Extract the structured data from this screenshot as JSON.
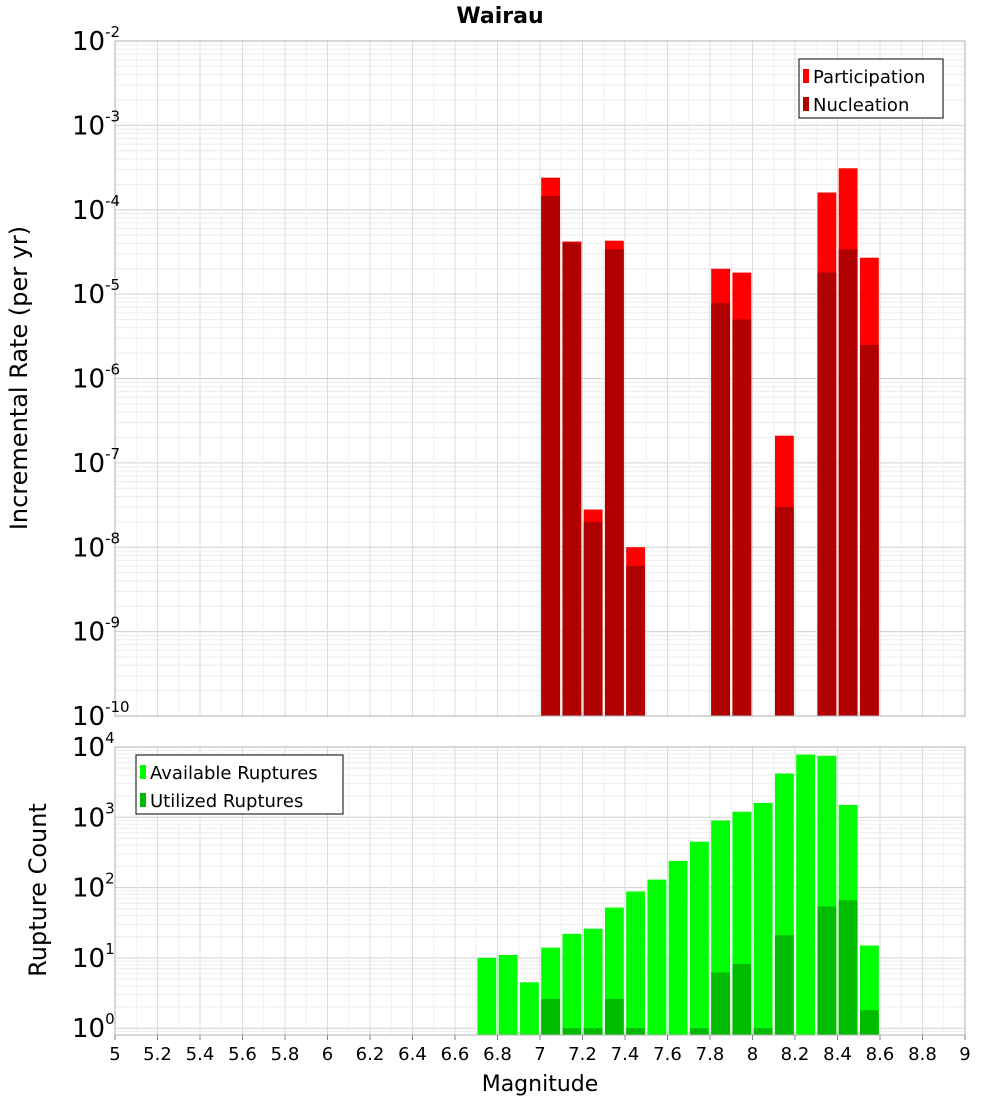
{
  "chart_data": [
    {
      "type": "bar",
      "title": "Wairau",
      "xlabel": "Magnitude",
      "ylabel": "Incremental Rate (per yr)",
      "y_scale": "log",
      "ylim": [
        1e-10,
        0.01
      ],
      "xlim": [
        5,
        9
      ],
      "bar_width": 0.1,
      "grid": true,
      "legend_position": "top-right",
      "x": [
        7.05,
        7.15,
        7.25,
        7.35,
        7.45,
        7.85,
        7.95,
        8.15,
        8.35,
        8.45,
        8.55
      ],
      "series": [
        {
          "name": "Participation",
          "color": "#ff0000",
          "values": [
            0.00024,
            4.2e-05,
            2.8e-08,
            4.3e-05,
            1e-08,
            2e-05,
            1.8e-05,
            2.1e-07,
            0.00016,
            0.00031,
            2.7e-05
          ]
        },
        {
          "name": "Nucleation",
          "color": "#b00000",
          "values": [
            0.000145,
            4.1e-05,
            2e-08,
            3.4e-05,
            6e-09,
            7.8e-06,
            5e-06,
            3e-08,
            1.8e-05,
            3.4e-05,
            2.5e-06
          ]
        }
      ]
    },
    {
      "type": "bar",
      "xlabel": "Magnitude",
      "ylabel": "Rupture Count",
      "y_scale": "log",
      "ylim": [
        0.8,
        10000
      ],
      "xlim": [
        5,
        9
      ],
      "bar_width": 0.1,
      "grid": true,
      "legend_position": "top-left",
      "x": [
        6.75,
        6.85,
        6.95,
        7.05,
        7.15,
        7.25,
        7.35,
        7.45,
        7.55,
        7.65,
        7.75,
        7.85,
        7.95,
        8.05,
        8.15,
        8.25,
        8.35,
        8.45,
        8.55
      ],
      "series": [
        {
          "name": "Available Ruptures",
          "color": "#00ff00",
          "values": [
            10,
            11,
            4.5,
            14,
            22,
            26,
            52,
            88,
            130,
            240,
            450,
            900,
            1200,
            1600,
            4200,
            7800,
            7500,
            1500,
            15
          ]
        },
        {
          "name": "Utilized Ruptures",
          "color": "#00bb00",
          "values": [
            0,
            0,
            0,
            2.6,
            1,
            1,
            2.6,
            1,
            0,
            0,
            1,
            6.2,
            8.2,
            1,
            21,
            0,
            54,
            66,
            1.8
          ]
        }
      ]
    }
  ],
  "x_ticks": [
    "5",
    "5.2",
    "5.4",
    "5.6",
    "5.8",
    "6",
    "6.2",
    "6.4",
    "6.6",
    "6.8",
    "7",
    "7.2",
    "7.4",
    "7.6",
    "7.8",
    "8",
    "8.2",
    "8.4",
    "8.6",
    "8.8",
    "9"
  ],
  "top_y_ticks": [
    {
      "base": "10",
      "exp": "-2"
    },
    {
      "base": "10",
      "exp": "-3"
    },
    {
      "base": "10",
      "exp": "-4"
    },
    {
      "base": "10",
      "exp": "-5"
    },
    {
      "base": "10",
      "exp": "-6"
    },
    {
      "base": "10",
      "exp": "-7"
    },
    {
      "base": "10",
      "exp": "-8"
    },
    {
      "base": "10",
      "exp": "-9"
    },
    {
      "base": "10",
      "exp": "-10"
    }
  ],
  "bottom_y_ticks": [
    {
      "base": "10",
      "exp": "4"
    },
    {
      "base": "10",
      "exp": "3"
    },
    {
      "base": "10",
      "exp": "2"
    },
    {
      "base": "10",
      "exp": "1"
    },
    {
      "base": "10",
      "exp": "0"
    }
  ]
}
